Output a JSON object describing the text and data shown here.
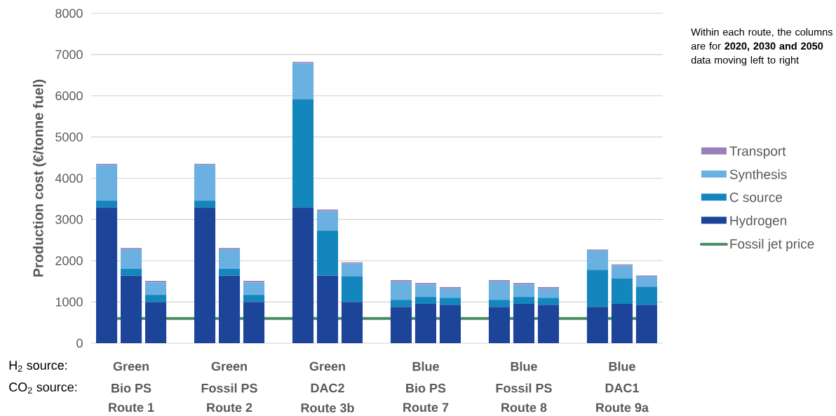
{
  "chart_data": {
    "type": "bar",
    "stacked": true,
    "ylabel": "Production cost (€/tonne fuel)",
    "categories": [
      null,
      "Route 1",
      null,
      null,
      "Route 2",
      null,
      null,
      "Route 3b",
      null,
      null,
      "Route 7",
      null,
      null,
      "Route 8",
      null,
      null,
      "Route 9a",
      null
    ],
    "series": [
      {
        "name": "Hydrogen",
        "color": "#1c4599",
        "values": [
          3290,
          1640,
          1000,
          3290,
          1640,
          1000,
          3290,
          1640,
          1000,
          880,
          950,
          930,
          880,
          950,
          930,
          880,
          950,
          930
        ]
      },
      {
        "name": "C source",
        "color": "#1486be",
        "values": [
          170,
          160,
          170,
          170,
          160,
          170,
          2630,
          1090,
          620,
          170,
          170,
          170,
          170,
          170,
          170,
          900,
          620,
          440
        ]
      },
      {
        "name": "Synthesis",
        "color": "#6ab0e0",
        "values": [
          860,
          480,
          300,
          860,
          480,
          300,
          870,
          470,
          310,
          440,
          300,
          220,
          440,
          300,
          220,
          460,
          310,
          240
        ]
      },
      {
        "name": "Transport",
        "color": "#9a80b8",
        "values": [
          30,
          30,
          40,
          30,
          30,
          40,
          30,
          40,
          30,
          40,
          40,
          40,
          40,
          40,
          40,
          30,
          30,
          30
        ]
      }
    ],
    "ref_lines": [
      {
        "axis": "y",
        "value": 600,
        "label": "Fossil jet price",
        "color": "#4a8a5f"
      }
    ],
    "ylim": [
      0,
      8000
    ],
    "yticks": [
      0,
      1000,
      2000,
      3000,
      4000,
      5000,
      6000,
      7000,
      8000
    ],
    "grid": "y",
    "legend": "right",
    "annotations": [
      "H$_{2}$ source:",
      "CO$_{2}$ source:",
      "Green",
      "Bio PS",
      "Green",
      "Fossil PS",
      "Green",
      "DAC2",
      "Blue",
      "Bio PS",
      "Blue",
      "Fossil PS",
      "Blue",
      "DAC1",
      "Within each route, the columns are for **2020, 2030 and 2050** data moving left to right"
    ]
  }
}
